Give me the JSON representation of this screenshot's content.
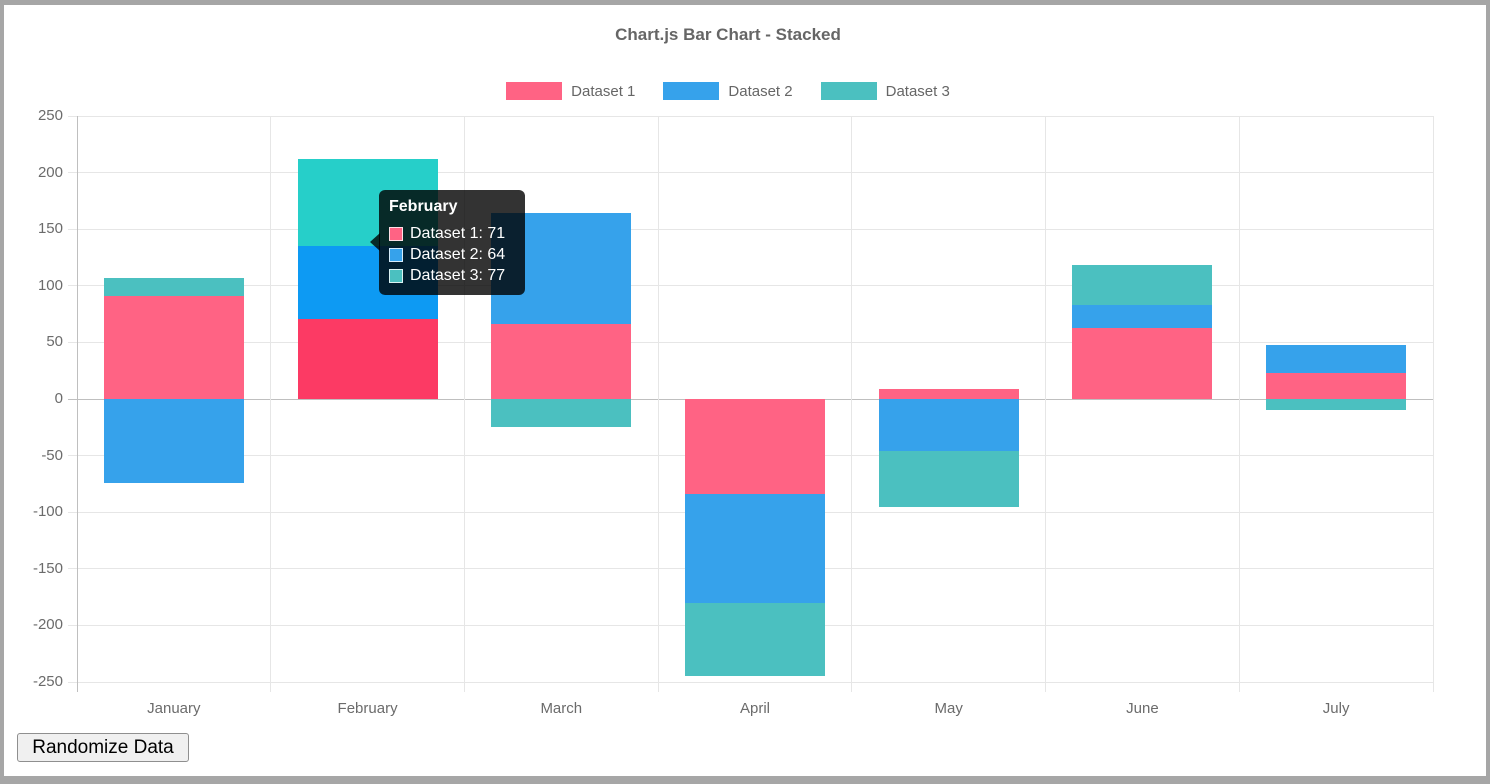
{
  "title": "Chart.js Bar Chart - Stacked",
  "button": {
    "label": "Randomize Data"
  },
  "tooltip": {
    "title": "February",
    "lines": [
      {
        "label": "Dataset 1",
        "value": 71,
        "color": "#ff6384"
      },
      {
        "label": "Dataset 2",
        "value": 64,
        "color": "#36a2eb"
      },
      {
        "label": "Dataset 3",
        "value": 77,
        "color": "#4bc0c0"
      }
    ]
  },
  "chart_data": {
    "type": "bar",
    "stacked": true,
    "title": "Chart.js Bar Chart - Stacked",
    "categories": [
      "January",
      "February",
      "March",
      "April",
      "May",
      "June",
      "July"
    ],
    "series": [
      {
        "name": "Dataset 1",
        "color": "#ff6384",
        "hover_color": "#fc3a64",
        "values": [
          91,
          71,
          66,
          -84,
          9,
          63,
          23
        ]
      },
      {
        "name": "Dataset 2",
        "color": "#36a2eb",
        "hover_color": "#0d9af3",
        "values": [
          -74,
          64,
          98,
          -96,
          -46,
          20,
          25
        ]
      },
      {
        "name": "Dataset 3",
        "color": "#4bc0c0",
        "hover_color": "#26cfc9",
        "values": [
          16,
          77,
          -25,
          -65,
          -49,
          35,
          -10
        ]
      }
    ],
    "hovered_category": "February",
    "xlabel": "",
    "ylabel": "",
    "ylim": [
      -250,
      250
    ],
    "ytick_step": 50,
    "legend_position": "top",
    "grid": true
  },
  "colors": {
    "grid_light": "#e6e6e6",
    "grid_zero": "#bfbfbf",
    "axis_text": "#6b6b6b",
    "title_text": "#666666",
    "frame_border": "#a6a6a6",
    "tooltip_bg": "rgba(0,0,0,0.8)"
  }
}
